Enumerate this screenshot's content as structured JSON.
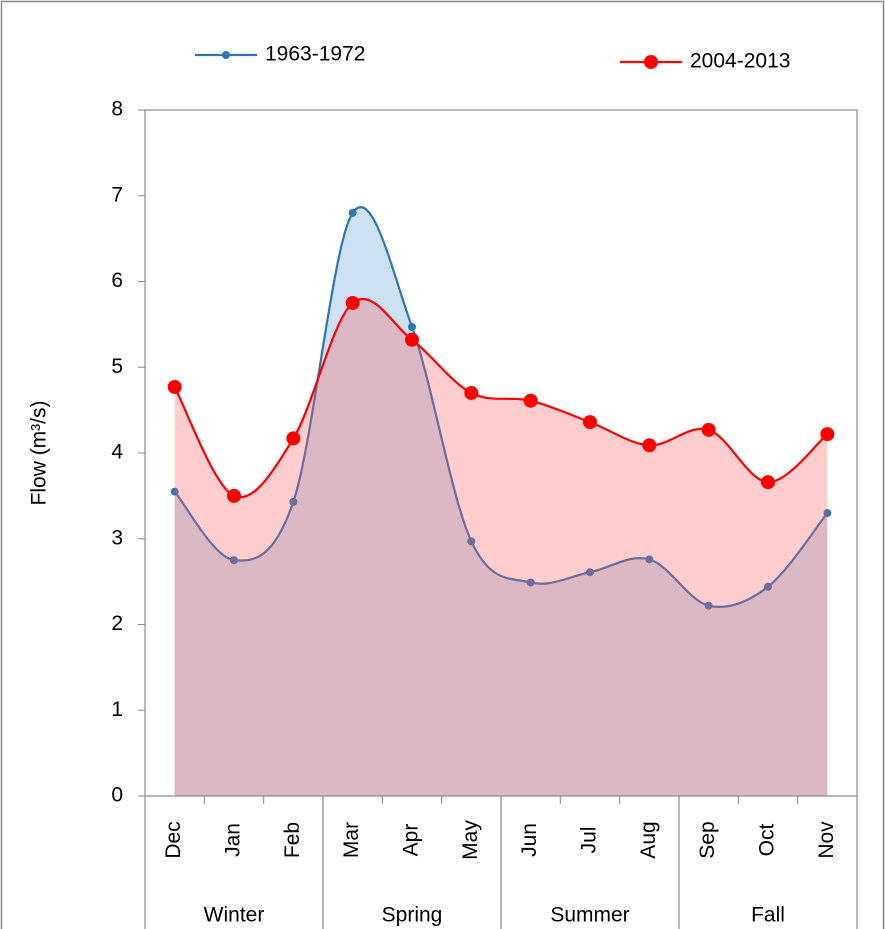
{
  "chart_data": {
    "type": "line",
    "y_label": "Flow (m³/s)",
    "categories": [
      "Dec",
      "Jan",
      "Feb",
      "Mar",
      "Apr",
      "May",
      "Jun",
      "Jul",
      "Aug",
      "Sep",
      "Oct",
      "Nov"
    ],
    "category_groups": [
      "Winter",
      "Spring",
      "Summer",
      "Fall"
    ],
    "series": [
      {
        "name": "1963-1972",
        "color": "#2e75b6",
        "fill": "rgba(91,155,213,0.3)",
        "values": [
          3.55,
          2.75,
          3.43,
          6.8,
          5.47,
          2.97,
          2.49,
          2.61,
          2.76,
          2.22,
          2.44,
          3.3
        ]
      },
      {
        "name": "2004-2013",
        "color": "#ff0000",
        "fill": "rgba(255,90,90,0.3)",
        "values": [
          4.77,
          3.5,
          4.17,
          5.75,
          5.32,
          4.7,
          4.61,
          4.36,
          4.09,
          4.27,
          3.66,
          4.22
        ]
      }
    ],
    "ylim": [
      0,
      8
    ],
    "yticks": [
      0,
      1,
      2,
      3,
      4,
      5,
      6,
      7,
      8
    ],
    "smooth": true,
    "area": true,
    "legend": "top"
  }
}
